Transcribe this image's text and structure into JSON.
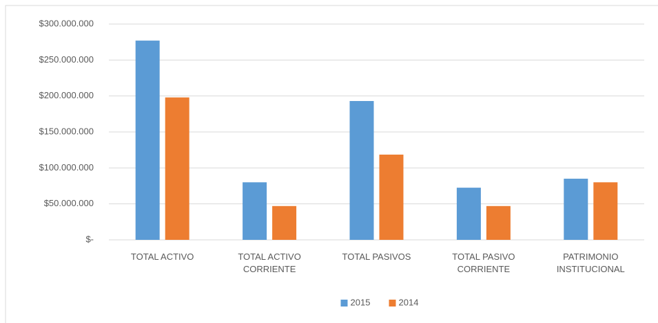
{
  "chart_data": {
    "type": "bar",
    "categories": [
      "TOTAL ACTIVO",
      "TOTAL ACTIVO CORRIENTE",
      "TOTAL PASIVOS",
      "TOTAL PASIVO CORRIENTE",
      "PATRIMONIO INSTITUCIONAL"
    ],
    "series": [
      {
        "name": "2015",
        "color": "#5b9bd5",
        "values": [
          277000000,
          80000000,
          193000000,
          72500000,
          85000000
        ]
      },
      {
        "name": "2014",
        "color": "#ed7d31",
        "values": [
          198000000,
          47000000,
          118500000,
          47000000,
          80000000
        ]
      }
    ],
    "ylim": [
      0,
      300000000
    ],
    "yticks": [
      {
        "value": 0,
        "label": "$-"
      },
      {
        "value": 50000000,
        "label": "$50.000.000"
      },
      {
        "value": 100000000,
        "label": "$100.000.000"
      },
      {
        "value": 150000000,
        "label": "$150.000.000"
      },
      {
        "value": 200000000,
        "label": "$200.000.000"
      },
      {
        "value": 250000000,
        "label": "$250.000.000"
      },
      {
        "value": 300000000,
        "label": "$300.000.000"
      }
    ],
    "grid": true,
    "legend": "bottom"
  }
}
